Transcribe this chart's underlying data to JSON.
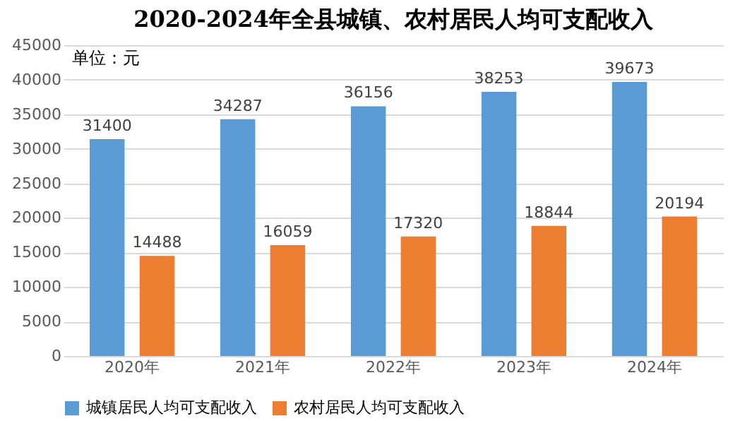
{
  "chart_data": {
    "type": "bar",
    "title": "2020-2024年全县城镇、农村居民人均可支配收入",
    "categories": [
      "2020年",
      "2021年",
      "2022年",
      "2023年",
      "2024年"
    ],
    "series": [
      {
        "name": "城镇居民人均可支配收入",
        "color": "#5b9bd5",
        "values": [
          31400,
          34287,
          36156,
          38253,
          39673
        ]
      },
      {
        "name": "农村居民人均可支配收入",
        "color": "#ed7d31",
        "values": [
          14488,
          16059,
          17320,
          18844,
          20194
        ]
      }
    ],
    "ylim": [
      0,
      45000
    ],
    "yticks": [
      0,
      5000,
      10000,
      15000,
      20000,
      25000,
      30000,
      35000,
      40000,
      45000
    ],
    "grid": "y",
    "legend": "bottom",
    "data_labels": true,
    "annotations": [
      "单位：元"
    ]
  }
}
